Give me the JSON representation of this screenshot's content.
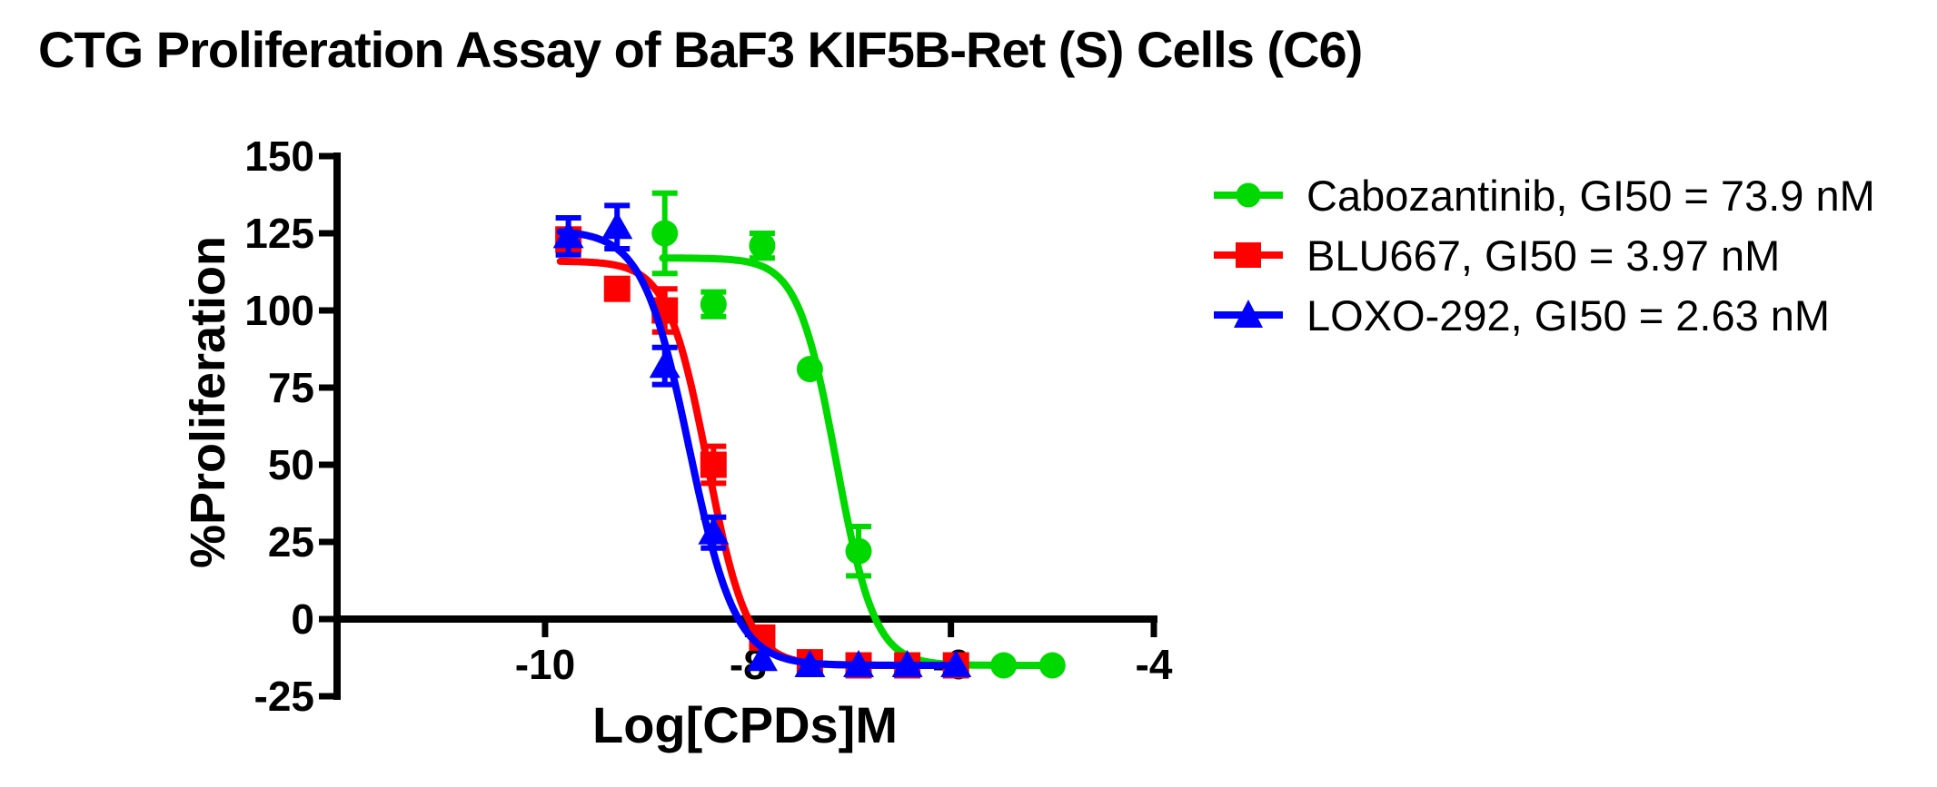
{
  "title": "CTG Proliferation Assay of BaF3 KIF5B-Ret (S) Cells (C6)",
  "axes": {
    "x": {
      "label": "Log[CPDs]M",
      "ticks": [
        -10,
        -8,
        -6,
        -4
      ]
    },
    "y": {
      "label": "%Proliferation",
      "ticks": [
        150,
        125,
        100,
        75,
        50,
        25,
        0,
        -25
      ]
    }
  },
  "legend": {
    "items": [
      {
        "label": "Cabozantinib, GI50 = 73.9 nM",
        "color": "#00d900",
        "marker": "circle"
      },
      {
        "label": "BLU667, GI50 = 3.97 nM",
        "color": "#ff0000",
        "marker": "square"
      },
      {
        "label": "LOXO-292, GI50 = 2.63 nM",
        "color": "#0000ff",
        "marker": "triangle"
      }
    ]
  },
  "chart_data": {
    "type": "scatter",
    "title": "CTG Proliferation Assay of BaF3 KIF5B-Ret (S) Cells (C6)",
    "xlabel": "Log[CPDs]M",
    "ylabel": "%Proliferation",
    "xlim": [
      -12.05,
      -4
    ],
    "ylim": [
      -25,
      150
    ],
    "grid": false,
    "legend_position": "right",
    "series": [
      {
        "name": "Cabozantinib",
        "gi50": "73.9 nM",
        "color": "#00d900",
        "marker": "circle",
        "x": [
          -8.82,
          -8.34,
          -7.86,
          -7.39,
          -6.91,
          -6.43,
          -5.95,
          -5.48,
          -5.0
        ],
        "y": [
          125,
          102,
          121,
          81,
          22,
          -15,
          -15,
          -15,
          -15
        ],
        "yerr": [
          13,
          4,
          4,
          0,
          8,
          0,
          0,
          0,
          0
        ],
        "fit": {
          "top": 117,
          "bottom": -15,
          "log_gi50": -7.13,
          "hill": 2.3,
          "range": [
            -8.84,
            -5.0
          ]
        }
      },
      {
        "name": "BLU667",
        "gi50": "3.97 nM",
        "color": "#ff0000",
        "marker": "square",
        "x": [
          -9.77,
          -9.29,
          -8.82,
          -8.34,
          -7.86,
          -7.39,
          -6.91,
          -6.43,
          -5.95
        ],
        "y": [
          123,
          107,
          100,
          50,
          -6,
          -14,
          -15,
          -15,
          -15
        ],
        "yerr": [
          0,
          0,
          7,
          6,
          0,
          0,
          0,
          0,
          0
        ],
        "fit": {
          "top": 116,
          "bottom": -15,
          "log_gi50": -8.4,
          "hill": 2.2,
          "range": [
            -9.85,
            -5.95
          ]
        }
      },
      {
        "name": "LOXO-292",
        "gi50": "2.63 nM",
        "color": "#0000ff",
        "marker": "triangle",
        "x": [
          -9.77,
          -9.29,
          -8.82,
          -8.34,
          -7.86,
          -7.39,
          -6.91,
          -6.43,
          -5.95
        ],
        "y": [
          124,
          127,
          82,
          28,
          -13,
          -15,
          -15,
          -15,
          -15
        ],
        "yerr": [
          6,
          7,
          6,
          5,
          0,
          0,
          0,
          0,
          0
        ],
        "fit": {
          "top": 126,
          "bottom": -15,
          "log_gi50": -8.58,
          "hill": 1.9,
          "range": [
            -9.85,
            -5.95
          ]
        }
      }
    ]
  }
}
